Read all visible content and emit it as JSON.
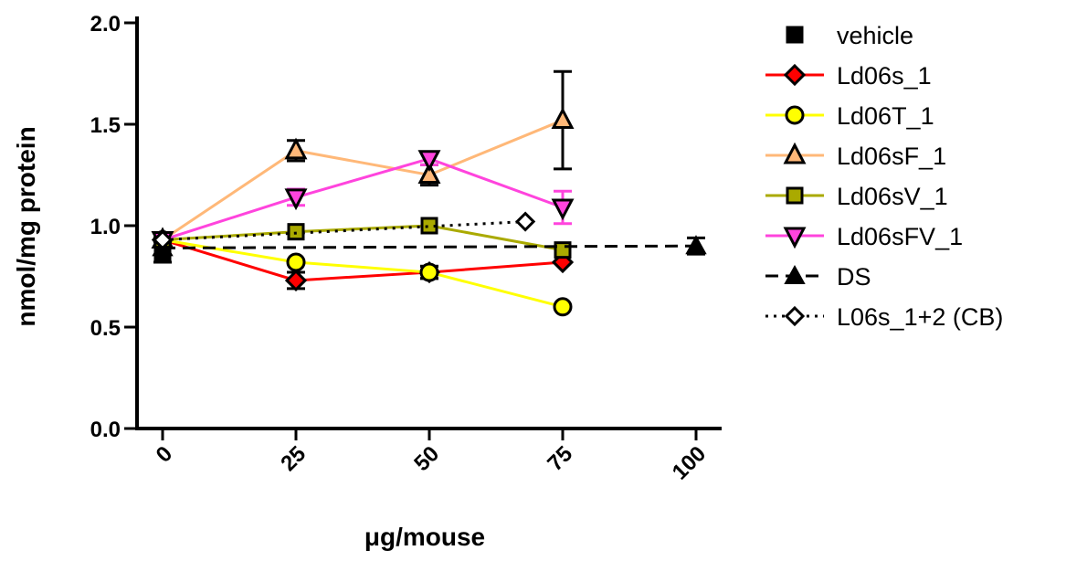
{
  "chart_data": {
    "type": "line",
    "xlabel": "μg/mouse",
    "ylabel": "nmol/mg protein",
    "xlim": [
      0,
      100
    ],
    "ylim": [
      0,
      2.0
    ],
    "x_ticks": [
      0,
      25,
      50,
      75,
      100
    ],
    "x_tick_labels": [
      "0",
      "25",
      "50",
      "75",
      "100"
    ],
    "y_ticks": [
      0.0,
      0.5,
      1.0,
      1.5,
      2.0
    ],
    "y_tick_labels": [
      "0.0",
      "0.5",
      "1.0",
      "1.5",
      "2.0"
    ],
    "legend_position": "right",
    "grid": false,
    "series": [
      {
        "name": "vehicle",
        "color": "#000000",
        "marker": "square",
        "line": "none",
        "points": [
          {
            "x": 0,
            "y": 0.86,
            "err": 0.04
          }
        ]
      },
      {
        "name": "Ld06s_1",
        "color": "#ff0000",
        "marker": "diamond",
        "line": "solid",
        "points": [
          {
            "x": 0,
            "y": 0.93,
            "err": 0
          },
          {
            "x": 25,
            "y": 0.73,
            "err": 0.04
          },
          {
            "x": 50,
            "y": 0.77,
            "err": 0.03
          },
          {
            "x": 75,
            "y": 0.82,
            "err": 0
          }
        ]
      },
      {
        "name": "Ld06T_1",
        "color": "#ffff00",
        "marker": "circle",
        "line": "solid",
        "points": [
          {
            "x": 0,
            "y": 0.93,
            "err": 0
          },
          {
            "x": 25,
            "y": 0.82,
            "err": 0
          },
          {
            "x": 50,
            "y": 0.77,
            "err": 0.03
          },
          {
            "x": 75,
            "y": 0.6,
            "err": 0
          }
        ]
      },
      {
        "name": "Ld06sF_1",
        "color": "#ffb878",
        "marker": "triangle-up",
        "line": "solid",
        "points": [
          {
            "x": 0,
            "y": 0.93,
            "err": 0
          },
          {
            "x": 25,
            "y": 1.37,
            "err": 0.05
          },
          {
            "x": 50,
            "y": 1.25,
            "err": 0.05
          },
          {
            "x": 75,
            "y": 1.52,
            "err": 0.24
          }
        ]
      },
      {
        "name": "Ld06sV_1",
        "color": "#aaaa00",
        "marker": "square",
        "line": "solid",
        "points": [
          {
            "x": 0,
            "y": 0.93,
            "err": 0
          },
          {
            "x": 25,
            "y": 0.97,
            "err": 0
          },
          {
            "x": 50,
            "y": 1.0,
            "err": 0
          },
          {
            "x": 75,
            "y": 0.88,
            "err": 0
          }
        ]
      },
      {
        "name": "Ld06sFV_1",
        "color": "#ff44dd",
        "marker": "triangle-down",
        "line": "solid",
        "points": [
          {
            "x": 0,
            "y": 0.93,
            "err": 0
          },
          {
            "x": 25,
            "y": 1.14,
            "err": 0.04
          },
          {
            "x": 50,
            "y": 1.33,
            "err": 0.03
          },
          {
            "x": 75,
            "y": 1.09,
            "err": 0.08
          }
        ]
      },
      {
        "name": "DS",
        "color": "#000000",
        "marker": "triangle-up-filled",
        "line": "dashed",
        "points": [
          {
            "x": 0,
            "y": 0.89,
            "err": 0
          },
          {
            "x": 100,
            "y": 0.9,
            "err": 0.04
          }
        ]
      },
      {
        "name": "L06s_1+2 (CB)",
        "color": "#000000",
        "marker": "diamond-open",
        "line": "dotted",
        "points": [
          {
            "x": 0,
            "y": 0.93,
            "err": 0
          },
          {
            "x": 68,
            "y": 1.02,
            "err": 0
          }
        ]
      }
    ]
  }
}
